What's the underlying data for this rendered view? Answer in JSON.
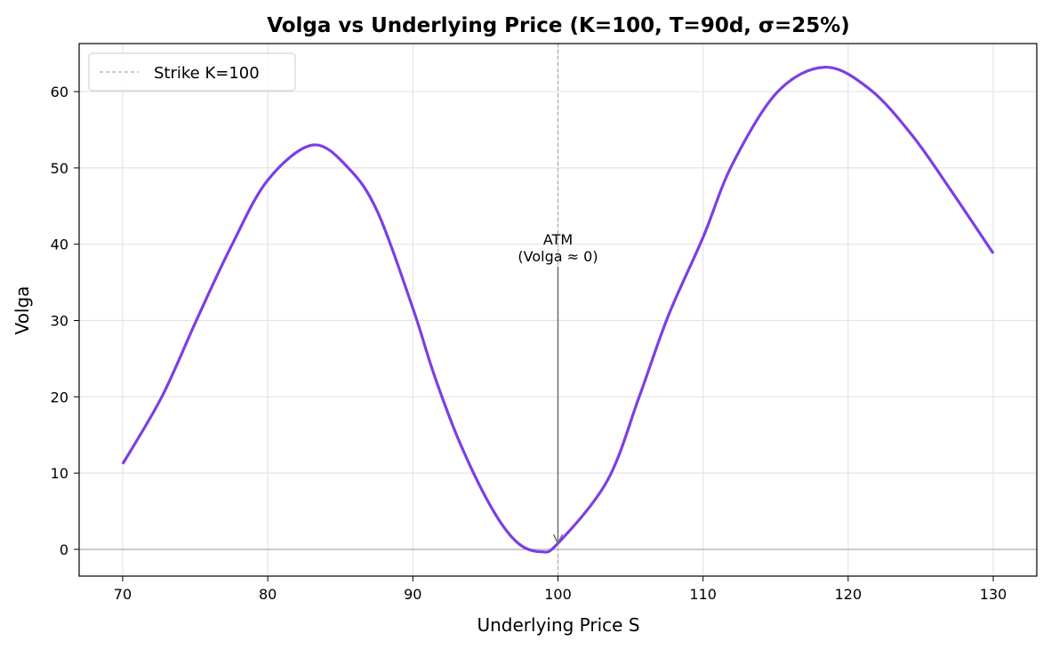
{
  "chart_data": {
    "type": "line",
    "title": "Volga vs Underlying Price (K=100, T=90d, σ=25%)",
    "xlabel": "Underlying Price S",
    "ylabel": "Volga",
    "xlim": [
      67,
      133
    ],
    "ylim": [
      -3.5,
      66.3
    ],
    "xticks": [
      70,
      80,
      90,
      100,
      110,
      120,
      130
    ],
    "yticks": [
      0,
      10,
      20,
      30,
      40,
      50,
      60
    ],
    "grid": true,
    "legend_placement": "top-left",
    "series": [
      {
        "color": "#7b3fe4",
        "x": [
          70,
          72.7,
          75.1,
          77.5,
          80.0,
          83.1,
          85.6,
          87.6,
          90.0,
          91.5,
          93.3,
          95.5,
          97.2,
          98.8,
          100,
          103.4,
          105.6,
          107.6,
          110,
          112.0,
          115.1,
          118.4,
          121.5,
          124.4,
          127.0,
          130
        ],
        "y": [
          11.2,
          20.0,
          30.1,
          39.8,
          48.4,
          53.0,
          49.9,
          44.1,
          31.6,
          22.7,
          13.7,
          5.2,
          0.9,
          -0.3,
          0.8,
          9.0,
          20.0,
          30.6,
          40.9,
          50.4,
          59.9,
          63.2,
          60.3,
          54.3,
          47.3,
          38.8
        ]
      }
    ],
    "reference_lines": [
      {
        "type": "vertical",
        "x": 100,
        "style": "dashed",
        "color": "#aaaaaa",
        "legend": "Strike K=100"
      },
      {
        "type": "horizontal",
        "y": 0,
        "color": "#bbbbbb"
      }
    ],
    "annotations": [
      {
        "text_line1": "ATM",
        "text_line2": "(Volga ≈ 0)",
        "text_at": [
          100,
          38
        ],
        "arrow_to": [
          100,
          0.8
        ],
        "arrow_color": "#666a78"
      }
    ]
  }
}
